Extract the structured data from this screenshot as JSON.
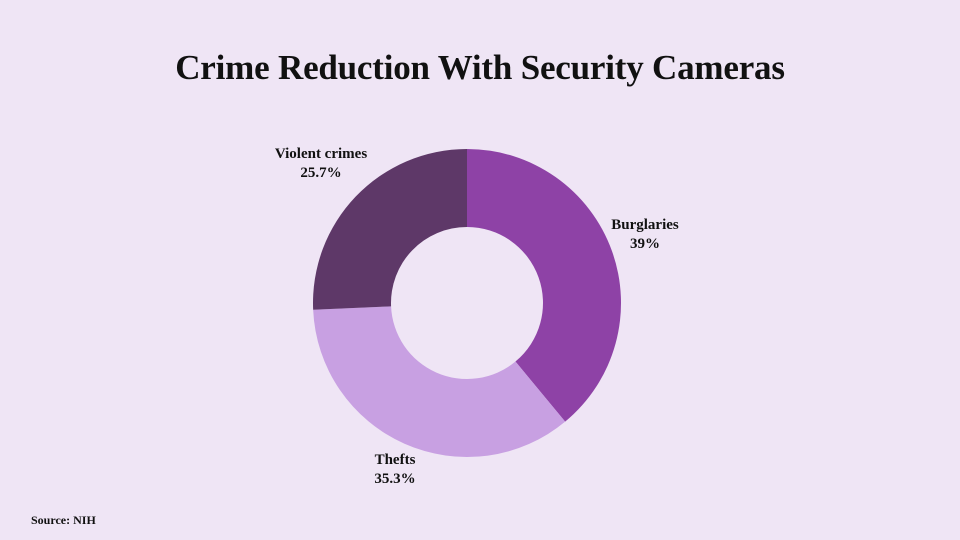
{
  "title": "Crime Reduction With Security Cameras",
  "source": "Source: NIH",
  "chart_data": {
    "type": "pie",
    "subtype": "donut",
    "title": "Crime Reduction With Security Cameras",
    "categories": [
      "Burglaries",
      "Thefts",
      "Violent crimes"
    ],
    "values": [
      39,
      35.3,
      25.7
    ],
    "unit": "%",
    "colors": [
      "#8e42a6",
      "#c8a0e2",
      "#5e3868"
    ],
    "labels": [
      {
        "name": "Burglaries",
        "value": "39%"
      },
      {
        "name": "Thefts",
        "value": "35.3%"
      },
      {
        "name": "Violent crimes",
        "value": "25.7%"
      }
    ],
    "start_angle": "12 o'clock",
    "direction": "clockwise",
    "source": "Source: NIH"
  },
  "colors": {
    "background": "#efe5f5",
    "hole": "#efe5f5"
  }
}
